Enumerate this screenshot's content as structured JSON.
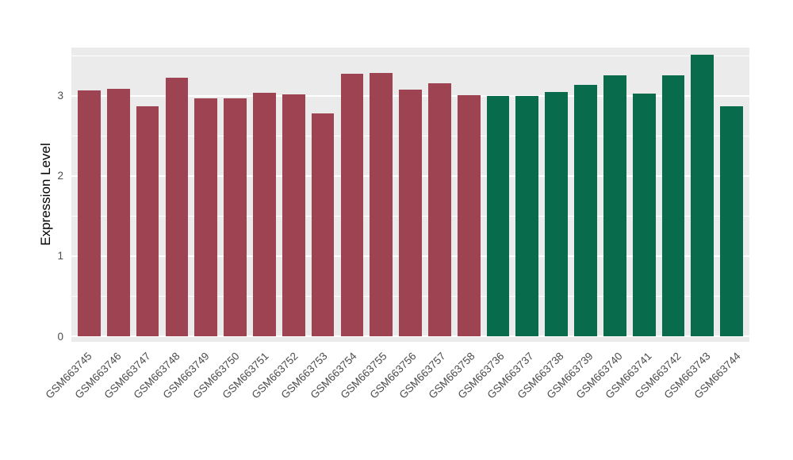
{
  "chart_data": {
    "type": "bar",
    "title": "",
    "xlabel": "",
    "ylabel": "Expression Level",
    "ylim": [
      0,
      3.6
    ],
    "yticks": [
      0,
      1,
      2,
      3
    ],
    "yticks_minor": [
      0.5,
      1.5,
      2.5,
      3.5
    ],
    "grid": "on",
    "legend": "none",
    "categories": [
      "GSM663745",
      "GSM663746",
      "GSM663747",
      "GSM663748",
      "GSM663749",
      "GSM663750",
      "GSM663751",
      "GSM663752",
      "GSM663753",
      "GSM663754",
      "GSM663755",
      "GSM663756",
      "GSM663757",
      "GSM663758",
      "GSM663736",
      "GSM663737",
      "GSM663738",
      "GSM663739",
      "GSM663740",
      "GSM663741",
      "GSM663742",
      "GSM663743",
      "GSM663744"
    ],
    "values": [
      3.07,
      3.09,
      2.87,
      3.22,
      2.97,
      2.97,
      3.04,
      3.02,
      2.78,
      3.27,
      3.28,
      3.08,
      3.16,
      3.01,
      3.0,
      3.0,
      3.05,
      3.14,
      3.25,
      3.03,
      3.25,
      3.51,
      2.87
    ],
    "colors": [
      "#9E4352",
      "#9E4352",
      "#9E4352",
      "#9E4352",
      "#9E4352",
      "#9E4352",
      "#9E4352",
      "#9E4352",
      "#9E4352",
      "#9E4352",
      "#9E4352",
      "#9E4352",
      "#9E4352",
      "#9E4352",
      "#086B4B",
      "#086B4B",
      "#086B4B",
      "#086B4B",
      "#086B4B",
      "#086B4B",
      "#086B4B",
      "#086B4B",
      "#086B4B"
    ],
    "groups": [
      {
        "name": "GSM663745-GSM663758",
        "color": "#9E4352",
        "count": 14
      },
      {
        "name": "GSM663736-GSM663744",
        "color": "#086B4B",
        "count": 9
      }
    ]
  },
  "style": {
    "panel_bg": "#EBEBEB",
    "grid_color": "#FFFFFF",
    "axis_text_color": "#4D4D4D",
    "axis_title_color": "#000000",
    "background": "#FFFFFF"
  }
}
